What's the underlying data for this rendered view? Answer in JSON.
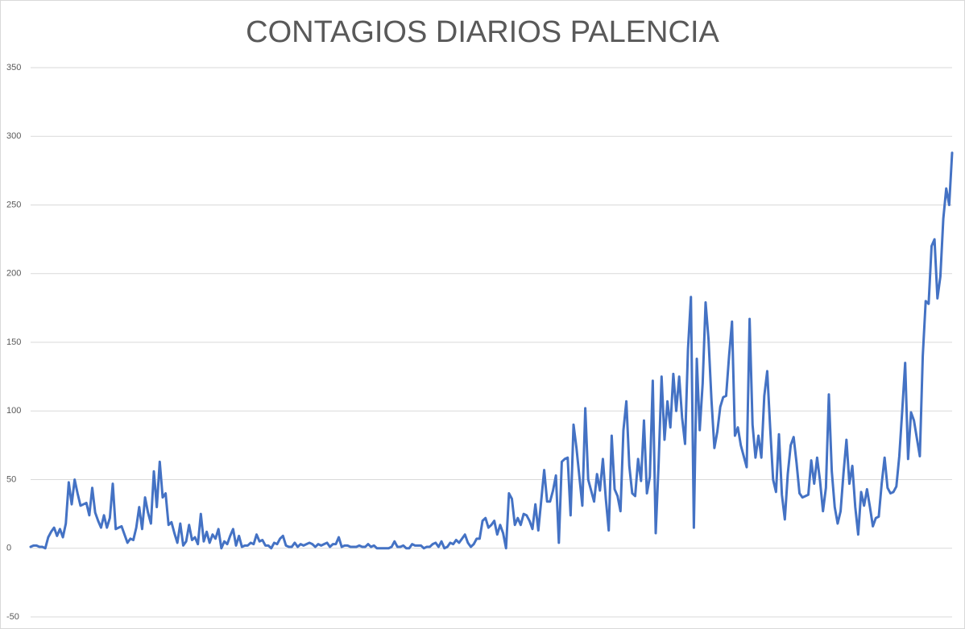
{
  "chart_data": {
    "type": "line",
    "title": "CONTAGIOS DIARIOS PALENCIA",
    "series": [
      {
        "color": "#4472c4",
        "values": [
          1,
          2,
          2,
          1,
          1,
          0,
          8,
          12,
          15,
          9,
          14,
          8,
          18,
          48,
          32,
          50,
          40,
          31,
          32,
          33,
          24,
          44,
          26,
          20,
          15,
          24,
          15,
          22,
          47,
          14,
          15,
          16,
          10,
          4,
          7,
          6,
          15,
          30,
          14,
          37,
          26,
          18,
          56,
          30,
          63,
          37,
          40,
          17,
          19,
          11,
          4,
          18,
          2,
          5,
          17,
          6,
          8,
          3,
          25,
          5,
          12,
          4,
          10,
          7,
          14,
          0,
          5,
          3,
          9,
          14,
          2,
          9,
          1,
          2,
          2,
          4,
          3,
          10,
          5,
          6,
          2,
          2,
          0,
          4,
          3,
          7,
          9,
          2,
          1,
          1,
          4,
          1,
          3,
          2,
          3,
          4,
          3,
          1,
          3,
          2,
          3,
          4,
          1,
          3,
          3,
          8,
          1,
          2,
          2,
          1,
          1,
          1,
          2,
          1,
          1,
          3,
          1,
          2,
          0,
          0,
          0,
          0,
          0,
          1,
          5,
          1,
          1,
          2,
          0,
          0,
          3,
          2,
          2,
          2,
          0,
          1,
          1,
          3,
          4,
          1,
          5,
          0,
          1,
          4,
          3,
          6,
          4,
          7,
          10,
          4,
          1,
          3,
          7,
          7,
          20,
          22,
          15,
          17,
          20,
          10,
          17,
          11,
          0,
          40,
          36,
          17,
          22,
          17,
          25,
          24,
          20,
          14,
          32,
          13,
          35,
          57,
          34,
          34,
          42,
          53,
          4,
          63,
          65,
          66,
          24,
          90,
          73,
          52,
          31,
          102,
          50,
          42,
          34,
          54,
          42,
          65,
          36,
          13,
          82,
          43,
          38,
          27,
          86,
          107,
          60,
          40,
          38,
          65,
          49,
          93,
          40,
          52,
          122,
          11,
          62,
          125,
          79,
          107,
          88,
          127,
          100,
          125,
          95,
          76,
          145,
          183,
          15,
          138,
          86,
          120,
          179,
          152,
          108,
          73,
          85,
          103,
          110,
          111,
          140,
          165,
          82,
          88,
          75,
          67,
          59,
          167,
          90,
          66,
          82,
          66,
          111,
          129,
          88,
          50,
          41,
          83,
          39,
          21,
          54,
          75,
          81,
          62,
          40,
          37,
          38,
          39,
          64,
          47,
          66,
          49,
          27,
          44,
          112,
          56,
          30,
          18,
          27,
          55,
          79,
          47,
          60,
          30,
          10,
          41,
          31,
          43,
          30,
          16,
          22,
          23,
          47,
          66,
          44,
          40,
          41,
          45,
          67,
          100,
          135,
          65,
          99,
          93,
          80,
          67,
          140,
          180,
          178,
          220,
          225,
          182,
          198,
          240,
          262,
          250,
          288
        ]
      }
    ],
    "ylim": [
      -50,
      350
    ],
    "yticks": [
      -50,
      0,
      50,
      100,
      150,
      200,
      250,
      300,
      350
    ],
    "grid": true
  }
}
